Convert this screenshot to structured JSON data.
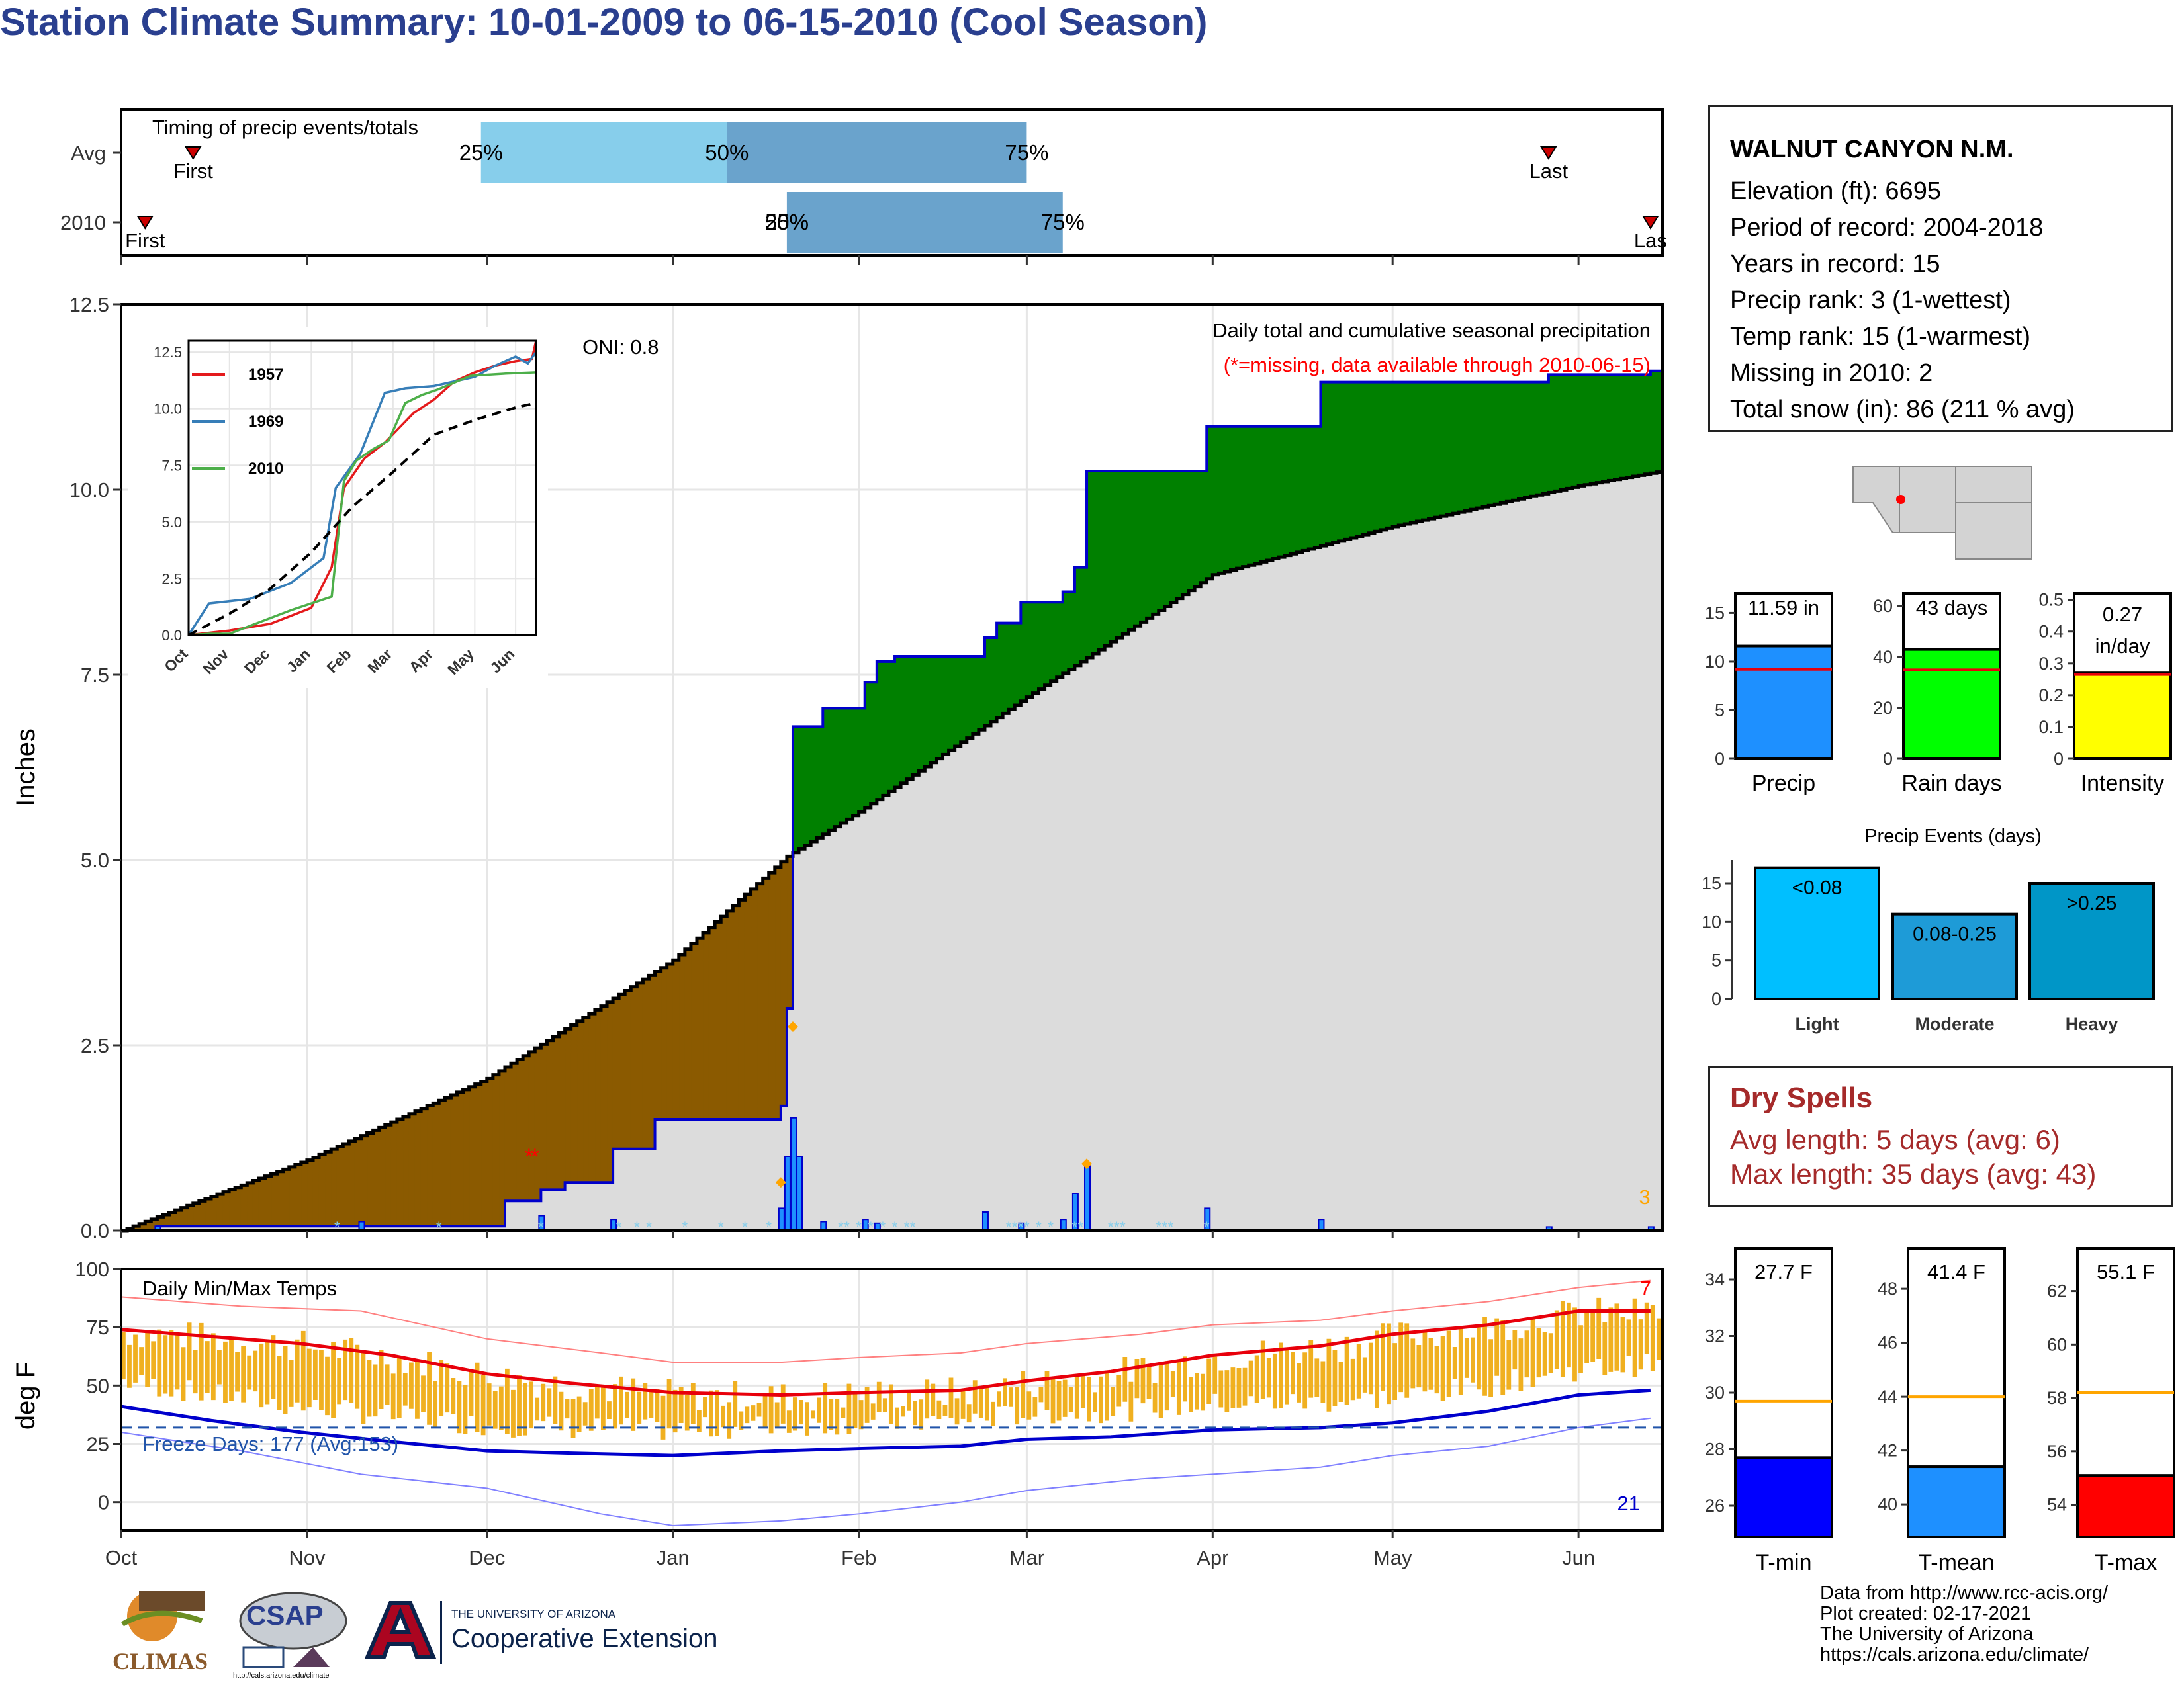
{
  "title": "Station Climate Summary: 10-01-2009 to 06-15-2010 (Cool Season)",
  "colors": {
    "title": "#2a3f8f",
    "avg_accum": "#dcdcdc",
    "surplus": "#008000",
    "deficit": "#8b5a00",
    "obs_line": "#0000cc",
    "tmax_avg": "#e8000b",
    "tmin_avg": "#0000cc",
    "temp_bar": "#f0b020",
    "precip_bar": "#1e90ff",
    "rain_days_bar": "#00ff00",
    "intensity_bar": "#ffff00",
    "light_bar": "#00bfff",
    "moderate_bar": "#1e9bd7",
    "heavy_bar": "#0096c7",
    "tmin_bar": "#0000ff",
    "tmean_bar": "#1e90ff",
    "tmax_bar": "#ff0000",
    "dry_spell_text": "#a52a2a"
  },
  "station": {
    "name": "WALNUT CANYON N.M.",
    "lines": [
      "Elevation (ft): 6695",
      "Period of record: 2004-2018",
      "Years in record: 15",
      "Precip rank: 3 (1-wettest)",
      "Temp rank: 15 (1-warmest)",
      "Missing in 2010: 2",
      "Total snow (in): 86 (211 % avg)"
    ]
  },
  "dry_spells": {
    "title": "Dry Spells",
    "lines": [
      "Avg length: 5 days (avg: 6)",
      "Max length: 35 days (avg: 43)"
    ]
  },
  "credits": [
    "Data from http://www.rcc-acis.org/",
    "Plot created: 02-17-2021",
    "The University of Arizona",
    "https://cals.arizona.edu/climate/"
  ],
  "logos": {
    "climas": "CLIMAS",
    "csap": "CSAP",
    "csap_url": "http://cals.arizona.edu/climate",
    "ua_small": "THE UNIVERSITY OF ARIZONA",
    "ua_big": "Cooperative Extension"
  },
  "chart_data": [
    {
      "id": "timing",
      "type": "bar",
      "title": "Timing of precip events/totals",
      "rows": [
        {
          "label": "Avg",
          "first": "2009-10-13",
          "p25": "2009-11-30",
          "p50": "2010-01-10",
          "p75": "2010-03-01",
          "last": "2010-05-27",
          "marker_labels": {
            "first": "First",
            "last": "Last",
            "p25": "25%",
            "p50": "50%",
            "p75": "75%"
          }
        },
        {
          "label": "2010",
          "first": "2009-10-05",
          "p25": "2010-01-20",
          "p50": "2010-01-20",
          "p75": "2010-03-07",
          "last": "2010-06-13",
          "marker_labels": {
            "first": "First",
            "last": "Las",
            "p25": "25%",
            "p50": "50%",
            "p75": "75%"
          }
        }
      ]
    },
    {
      "id": "precip",
      "type": "area",
      "ylabel": "Inches",
      "yticks": [
        0.0,
        2.5,
        5.0,
        7.5,
        10.0,
        12.5
      ],
      "ylim": [
        0,
        12.5
      ],
      "xticks": [
        "Oct",
        "Nov",
        "Dec",
        "Jan",
        "Feb",
        "Mar",
        "Apr",
        "May",
        "Jun"
      ],
      "xlim": [
        "2009-10-01",
        "2010-06-15"
      ],
      "subtitle": "Daily total and cumulative seasonal precipitation",
      "missing_note": "(*=missing, data available through 2010-06-15)",
      "oni": "ONI: 0.8",
      "corner_number": "3",
      "avg_cumulative": {
        "x": [
          "2009-10-01",
          "2009-11-01",
          "2009-12-01",
          "2010-01-01",
          "2010-01-20",
          "2010-02-01",
          "2010-03-01",
          "2010-04-01",
          "2010-05-01",
          "2010-06-01",
          "2010-06-15"
        ],
        "y": [
          0,
          0.95,
          2.05,
          3.65,
          5.05,
          5.65,
          7.2,
          8.85,
          9.5,
          10.05,
          10.25
        ]
      },
      "obs_cumulative": {
        "x": [
          "2009-10-01",
          "2009-10-07",
          "2009-12-01",
          "2009-12-04",
          "2009-12-10",
          "2009-12-14",
          "2009-12-22",
          "2009-12-29",
          "2010-01-19",
          "2010-01-20",
          "2010-01-21",
          "2010-01-22",
          "2010-01-26",
          "2010-02-02",
          "2010-02-04",
          "2010-02-07",
          "2010-02-22",
          "2010-02-24",
          "2010-02-28",
          "2010-03-07",
          "2010-03-09",
          "2010-03-11",
          "2010-03-31",
          "2010-04-19",
          "2010-05-27",
          "2010-06-13",
          "2010-06-15"
        ],
        "y": [
          0,
          0.06,
          0.06,
          0.4,
          0.55,
          0.65,
          1.1,
          1.5,
          1.68,
          3.0,
          6.8,
          6.8,
          7.05,
          7.4,
          7.68,
          7.75,
          8.0,
          8.2,
          8.48,
          8.62,
          8.95,
          10.25,
          10.85,
          11.45,
          11.55,
          11.6,
          11.6
        ]
      },
      "daily": {
        "x": [
          "2009-10-07",
          "2009-11-10",
          "2009-12-10",
          "2009-12-22",
          "2010-01-19",
          "2010-01-20",
          "2010-01-21",
          "2010-01-22",
          "2010-01-26",
          "2010-02-02",
          "2010-02-04",
          "2010-02-22",
          "2010-02-28",
          "2010-03-07",
          "2010-03-09",
          "2010-03-11",
          "2010-03-31",
          "2010-04-19",
          "2010-05-27",
          "2010-06-13"
        ],
        "y": [
          0.06,
          0.12,
          0.2,
          0.15,
          0.3,
          1.0,
          1.52,
          1.0,
          0.12,
          0.15,
          0.1,
          0.25,
          0.1,
          0.15,
          0.5,
          0.9,
          0.3,
          0.15,
          0.05,
          0.05
        ]
      },
      "insert_markers_2010": {
        "x": [
          "2010-01-19",
          "2010-01-21",
          "2010-03-11"
        ],
        "y": [
          0.65,
          2.75,
          0.9
        ]
      },
      "missing_markers": {
        "x": [
          "2009-12-08",
          "2009-12-09"
        ],
        "y": [
          1.0,
          1.0
        ],
        "label": "*"
      },
      "inset": {
        "type": "line",
        "yticks": [
          0.0,
          2.5,
          5.0,
          7.5,
          10.0,
          12.5
        ],
        "ylim": [
          0,
          13
        ],
        "xticks": [
          "Oct",
          "Nov",
          "Dec",
          "Jan",
          "Feb",
          "Mar",
          "Apr",
          "May",
          "Jun"
        ],
        "series": [
          {
            "name": "1957",
            "color": "#e41a1c",
            "x": [
              0,
              1,
              2,
              3,
              3.5,
              3.8,
              4.3,
              4.8,
              5.5,
              6,
              6.5,
              7,
              7.5,
              8,
              8.4,
              8.5
            ],
            "y": [
              0,
              0.2,
              0.5,
              1.2,
              3.0,
              6.5,
              7.8,
              8.5,
              9.8,
              10.4,
              11.2,
              11.6,
              11.9,
              12.1,
              12.2,
              13.0
            ]
          },
          {
            "name": "1969",
            "color": "#377eb8",
            "x": [
              0,
              0.5,
              1.5,
              2.5,
              3.3,
              3.6,
              4.2,
              4.8,
              5.3,
              6,
              6.5,
              7,
              7.5,
              8,
              8.3,
              8.5
            ],
            "y": [
              0,
              1.4,
              1.6,
              2.3,
              3.4,
              6.5,
              8.0,
              10.7,
              10.9,
              11.0,
              11.2,
              11.4,
              11.9,
              12.3,
              12.0,
              12.5
            ]
          },
          {
            "name": "2010",
            "color": "#4daf4a",
            "x": [
              0,
              0.5,
              1,
              2.5,
              3.5,
              3.8,
              4.1,
              4.5,
              4.9,
              5.3,
              5.7,
              6.1,
              6.9,
              7.8,
              8.5
            ],
            "y": [
              0,
              0.06,
              0.06,
              1.1,
              1.7,
              6.8,
              7.7,
              8.2,
              8.6,
              10.25,
              10.6,
              10.85,
              11.45,
              11.55,
              11.6
            ]
          },
          {
            "name": "avg",
            "color": "#000000",
            "dashed": true,
            "x": [
              0,
              1,
              2,
              3,
              4,
              5,
              6,
              7,
              8,
              8.5
            ],
            "y": [
              0,
              0.95,
              2.05,
              3.65,
              5.65,
              7.2,
              8.85,
              9.5,
              10.05,
              10.25
            ]
          }
        ]
      }
    },
    {
      "id": "temps",
      "type": "line",
      "title": "Daily Min/Max Temps",
      "ylabel": "deg F",
      "yticks": [
        0,
        25,
        50,
        75,
        100
      ],
      "ylim": [
        -12,
        100
      ],
      "xticks": [
        "Oct",
        "Nov",
        "Dec",
        "Jan",
        "Feb",
        "Mar",
        "Apr",
        "May",
        "Jun"
      ],
      "freeze_days": "Freeze Days: 177 (Avg:153)",
      "freeze_line": 32,
      "corner_high": "7",
      "corner_low": "21",
      "avg_max": {
        "x": [
          0,
          15,
          30,
          45,
          61,
          75,
          92,
          110,
          123,
          140,
          151,
          165,
          182,
          200,
          212,
          228,
          243,
          255
        ],
        "y": [
          74,
          71,
          68,
          63,
          55,
          51,
          47,
          46,
          47,
          48,
          52,
          56,
          63,
          67,
          72,
          76,
          82,
          82
        ]
      },
      "avg_min": {
        "x": [
          0,
          15,
          30,
          45,
          61,
          75,
          92,
          110,
          123,
          140,
          151,
          165,
          182,
          200,
          212,
          228,
          243,
          255
        ],
        "y": [
          41,
          35,
          30,
          26,
          22,
          21,
          20,
          22,
          23,
          24,
          27,
          28,
          31,
          32,
          34,
          39,
          46,
          48
        ]
      },
      "record_max": {
        "x": [
          0,
          20,
          40,
          61,
          80,
          92,
          110,
          123,
          140,
          151,
          170,
          182,
          200,
          212,
          228,
          243,
          255
        ],
        "y": [
          88,
          84,
          82,
          70,
          64,
          60,
          60,
          62,
          64,
          68,
          72,
          76,
          78,
          82,
          86,
          92,
          95
        ]
      },
      "record_min": {
        "x": [
          0,
          20,
          40,
          61,
          80,
          92,
          110,
          123,
          140,
          151,
          170,
          182,
          200,
          212,
          228,
          243,
          255
        ],
        "y": [
          30,
          22,
          12,
          6,
          -5,
          -10,
          -8,
          -5,
          0,
          5,
          10,
          12,
          15,
          20,
          24,
          32,
          36
        ]
      }
    },
    {
      "id": "precip_totals",
      "type": "bar",
      "panels": [
        {
          "name": "Precip",
          "label": "11.59 in",
          "value": 11.59,
          "avg": 9.2,
          "ylim": [
            0,
            17
          ],
          "yticks": [
            0,
            5,
            10,
            15
          ],
          "color": "#1e90ff"
        },
        {
          "name": "Rain days",
          "label": "43 days",
          "value": 43,
          "avg": 35,
          "ylim": [
            0,
            65
          ],
          "yticks": [
            0,
            20,
            40,
            60
          ],
          "color": "#00ff00"
        },
        {
          "name": "Intensity",
          "label": "0.27 in/day",
          "value": 0.27,
          "avg": 0.265,
          "ylim": [
            0,
            0.52
          ],
          "yticks": [
            0.0,
            0.1,
            0.2,
            0.3,
            0.4,
            0.5
          ],
          "color": "#ffff00"
        }
      ]
    },
    {
      "id": "precip_events",
      "type": "bar",
      "title": "Precip Events (days)",
      "categories": [
        "Light",
        "Moderate",
        "Heavy"
      ],
      "labels": [
        "<0.08",
        "0.08-0.25",
        ">0.25"
      ],
      "values": [
        17,
        11,
        15
      ],
      "yticks": [
        0,
        5,
        10,
        15
      ],
      "ylim": [
        0,
        18
      ]
    },
    {
      "id": "temp_summary",
      "type": "bar",
      "panels": [
        {
          "name": "T-min",
          "label": "27.7 F",
          "value": 27.7,
          "avg": 29.7,
          "ylim": [
            24.9,
            35.1
          ],
          "yticks": [
            26,
            28,
            30,
            32,
            34
          ],
          "color": "#0000ff"
        },
        {
          "name": "T-mean",
          "label": "41.4 F",
          "value": 41.4,
          "avg": 44.0,
          "ylim": [
            38.8,
            49.5
          ],
          "yticks": [
            40,
            42,
            44,
            46,
            48
          ],
          "color": "#1e90ff"
        },
        {
          "name": "T-max",
          "label": "55.1 F",
          "value": 55.1,
          "avg": 58.2,
          "ylim": [
            52.8,
            63.6
          ],
          "yticks": [
            54,
            56,
            58,
            60,
            62
          ],
          "color": "#ff0000"
        }
      ]
    }
  ]
}
